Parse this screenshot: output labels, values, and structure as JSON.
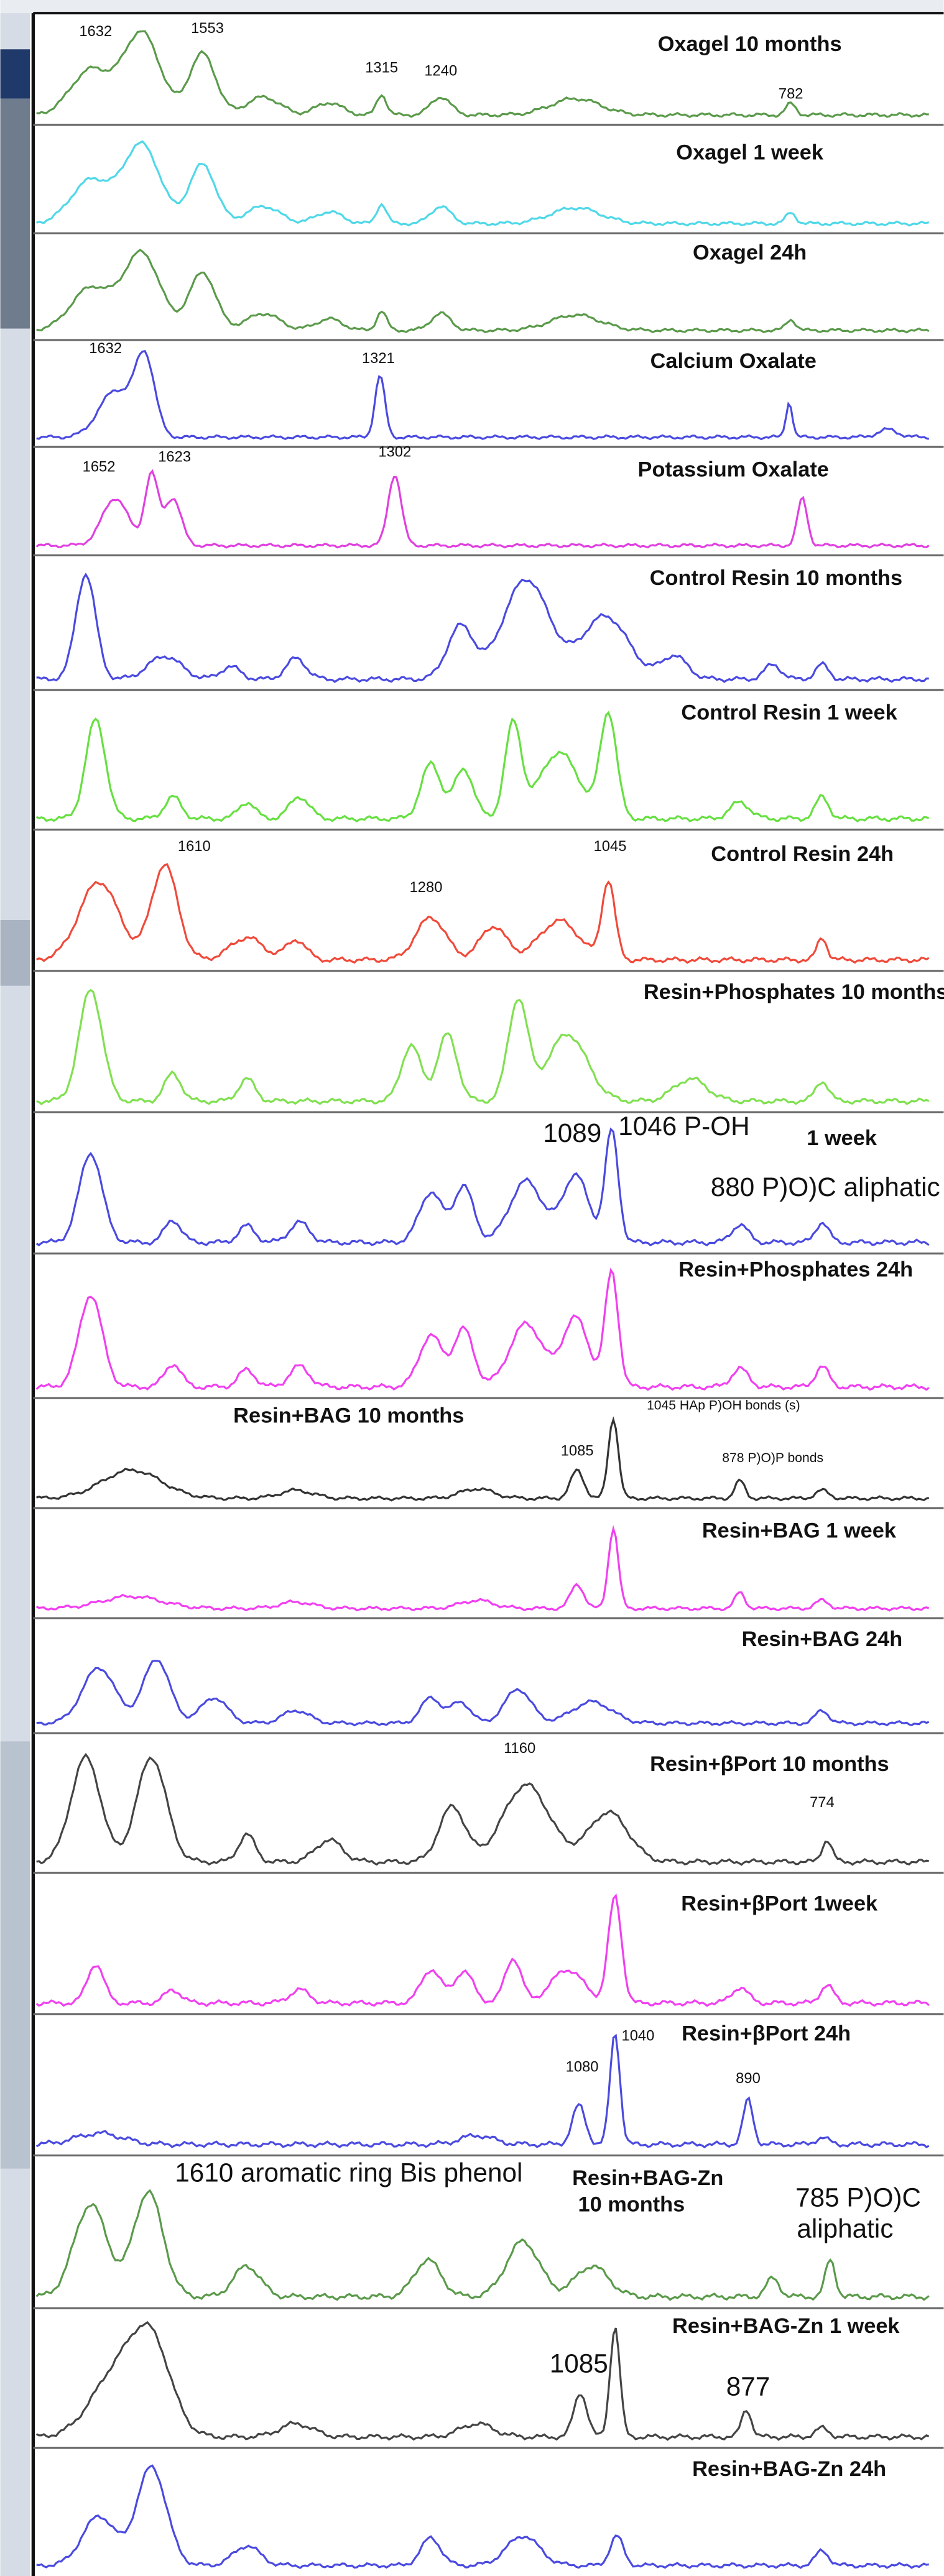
{
  "panels": [
    {
      "label": "Oxagel 10 months",
      "color": "#5a9a4a",
      "annotations": [
        "1632",
        "1553",
        "1315",
        "1240",
        "782"
      ]
    },
    {
      "label": "Oxagel 1 week",
      "color": "#4fd8e8",
      "annotations": []
    },
    {
      "label": "Oxagel 24h",
      "color": "#5a9a4a",
      "annotations": []
    },
    {
      "label": "Calcium Oxalate",
      "color": "#4a4ae0",
      "annotations": [
        "1632",
        "1321"
      ]
    },
    {
      "label": "Potassium Oxalate",
      "color": "#e040e0",
      "annotations": [
        "1652",
        "1623",
        "1302"
      ]
    },
    {
      "label": "Control Resin 10 months",
      "color": "#4a4ae0",
      "annotations": []
    },
    {
      "label": "Control Resin 1 week",
      "color": "#66e040",
      "annotations": []
    },
    {
      "label": "Control Resin 24h",
      "color": "#f04a3a",
      "annotations": [
        "1610",
        "1280",
        "1045"
      ]
    },
    {
      "label": "Resin+Phosphates 10 months",
      "color": "#80e050",
      "annotations": []
    },
    {
      "label": "1 week",
      "color": "#4a4ae0",
      "annotations": [
        "1089",
        "1046 P-OH",
        "880 P)O)C aliphatic"
      ]
    },
    {
      "label": "Resin+Phosphates 24h",
      "color": "#f040f0",
      "annotations": []
    },
    {
      "label": "Resin+BAG 10 months",
      "color": "#333333",
      "annotations": [
        "1045 HAp P)OH bonds (s)",
        "1085",
        "878 P)O)P bonds"
      ]
    },
    {
      "label": "Resin+BAG 1 week",
      "color": "#f040f0",
      "annotations": []
    },
    {
      "label": "Resin+BAG 24h",
      "color": "#4a4ae0",
      "annotations": []
    },
    {
      "label": "Resin+βPort 10 months",
      "color": "#444444",
      "annotations": [
        "1160",
        "774"
      ]
    },
    {
      "label": "Resin+βPort 1week",
      "color": "#f040f0",
      "annotations": []
    },
    {
      "label": "Resin+βPort 24h",
      "color": "#4a4ae0",
      "annotations": [
        "1080",
        "1040",
        "890"
      ]
    },
    {
      "label": "Resin+BAG-Zn",
      "subtitle": "10 months",
      "color": "#5a9a4a",
      "annotations": [
        "1610 aromatic ring Bis phenol",
        "785 P)O)C",
        "aliphatic"
      ]
    },
    {
      "label": "Resin+BAG-Zn 1 week",
      "color": "#444444",
      "annotations": [
        "1085",
        "877"
      ]
    },
    {
      "label": "Resin+BAG-Zn 24h",
      "color": "#4a4ae0",
      "annotations": []
    }
  ]
}
